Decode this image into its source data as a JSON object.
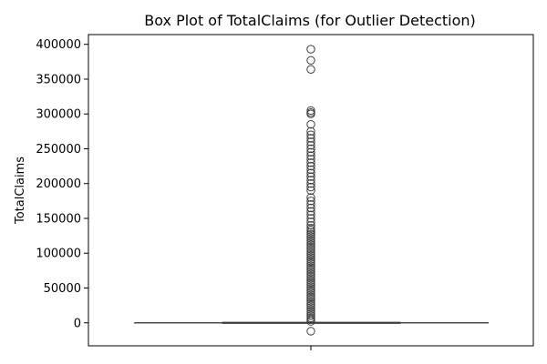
{
  "chart_data": {
    "type": "box",
    "title": "Box Plot of TotalClaims (for Outlier Detection)",
    "xlabel": "",
    "ylabel": "TotalClaims",
    "ylim": [
      -33000,
      414000
    ],
    "yticks": [
      0,
      50000,
      100000,
      150000,
      200000,
      250000,
      300000,
      350000,
      400000
    ],
    "ytick_labels": [
      "0",
      "50000",
      "100000",
      "150000",
      "200000",
      "250000",
      "300000",
      "350000",
      "400000"
    ],
    "grid": false,
    "legend": "none",
    "box": {
      "q1": 0,
      "median": 0,
      "q3": 0,
      "whisker_low": 0,
      "whisker_high": 0
    },
    "outliers": [
      -12000,
      2000,
      4500,
      7000,
      10000,
      13000,
      16000,
      19000,
      22000,
      25000,
      28000,
      31000,
      34000,
      37000,
      40000,
      43000,
      46000,
      49000,
      52000,
      55000,
      58000,
      61000,
      64000,
      67000,
      70000,
      73000,
      76000,
      79000,
      82000,
      85000,
      88000,
      91000,
      94000,
      97000,
      100000,
      103000,
      106000,
      109000,
      112000,
      115000,
      118000,
      121000,
      124000,
      127000,
      130000,
      133000,
      136000,
      140000,
      145000,
      150000,
      155000,
      160000,
      165000,
      170000,
      175000,
      180000,
      190000,
      195000,
      200000,
      205000,
      210000,
      215000,
      220000,
      225000,
      230000,
      235000,
      240000,
      245000,
      250000,
      255000,
      260000,
      265000,
      270000,
      275000,
      285000,
      300000,
      302000,
      305000,
      364000,
      377000,
      393000
    ],
    "colors": {
      "box": "#4c4c4c",
      "outline": "#3f3f3f",
      "marker_edge": "#3f3f3f"
    }
  }
}
